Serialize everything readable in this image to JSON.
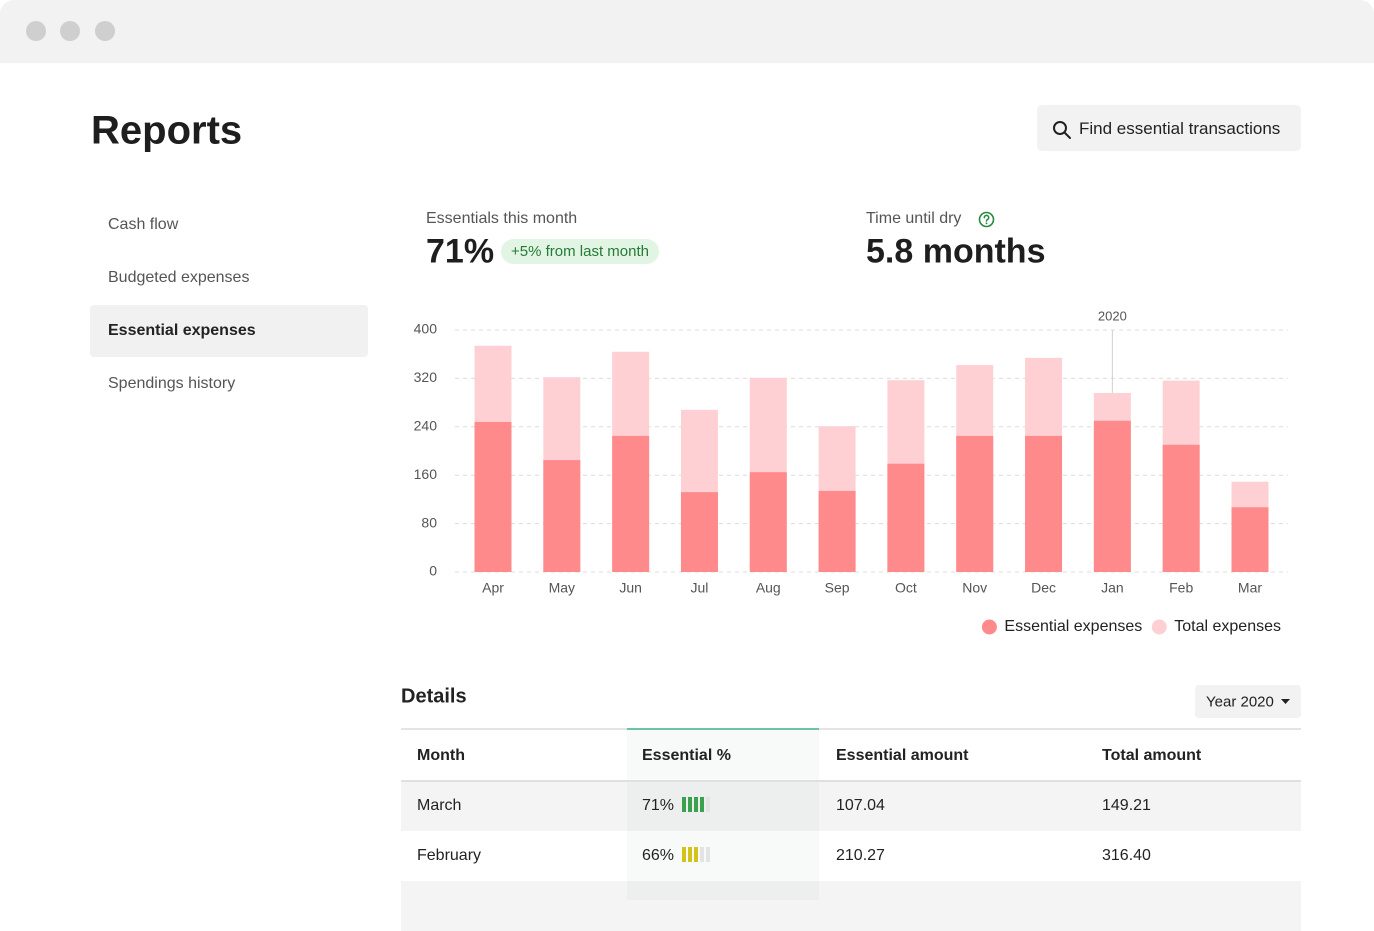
{
  "header": {
    "title": "Reports",
    "button": "Find essential transactions"
  },
  "sidebar": {
    "items": [
      "Cash flow",
      "Budgeted expenses",
      "Essential expenses",
      "Spendings history"
    ],
    "active": 2
  },
  "stats": [
    {
      "label": "Essentials this month",
      "value": "71%",
      "badge": "+5% from last month"
    },
    {
      "label": "Time until dry",
      "value": "5.8 months"
    }
  ],
  "chart_data": {
    "type": "bar",
    "layout": "overlay",
    "categories": [
      "Apr",
      "May",
      "Jun",
      "Jul",
      "Aug",
      "Sep",
      "Oct",
      "Nov",
      "Dec",
      "Jan",
      "Feb",
      "Mar"
    ],
    "series": [
      {
        "name": "Essential expenses",
        "color": "#ff8a8c",
        "values": [
          248,
          185,
          225,
          132,
          165,
          134,
          179,
          225,
          225,
          250,
          210.27,
          107.04
        ]
      },
      {
        "name": "Total expenses",
        "color": "#ffd0d3",
        "values": [
          374,
          322,
          364,
          268,
          321,
          241,
          317,
          342,
          354,
          296,
          316.4,
          149.21
        ]
      }
    ],
    "ylim": [
      0,
      400
    ],
    "yticks": [
      0,
      80,
      160,
      240,
      320,
      400
    ],
    "grid": true,
    "annotations": [
      {
        "text": "2020",
        "category": "Jan"
      }
    ],
    "legend": "bottom-right"
  },
  "details": {
    "title": "Details",
    "filter": "Year 2020",
    "table": {
      "columns": [
        "Month",
        "Essential %",
        "Essential amount",
        "Total amount"
      ],
      "highlight_column": 1,
      "rows": [
        [
          "March",
          "71%",
          "107.04",
          "149.21"
        ],
        [
          "February",
          "66%",
          "210.27",
          "316.40"
        ]
      ]
    }
  }
}
